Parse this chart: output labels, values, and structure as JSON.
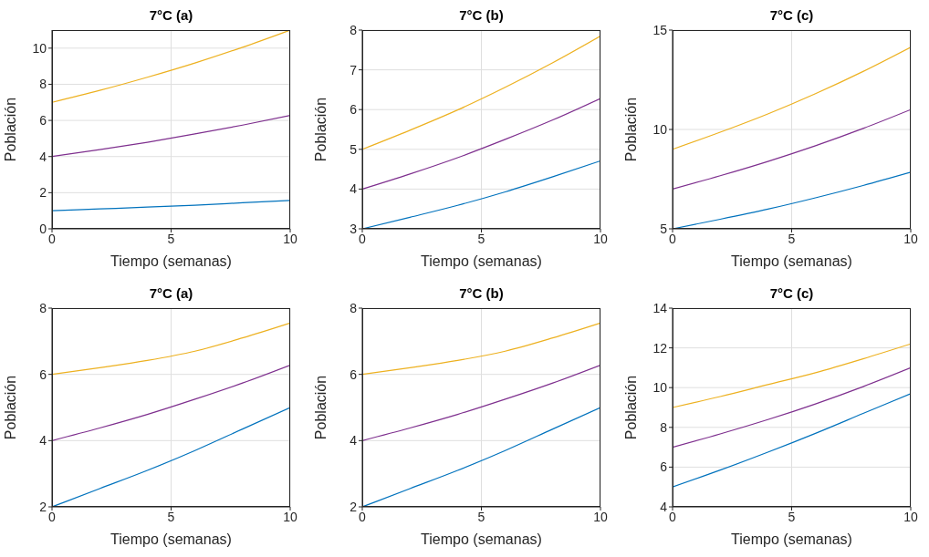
{
  "chart_data": [
    {
      "type": "line",
      "title": "7°C (a)",
      "xlabel": "Tiempo (semanas)",
      "ylabel": "Población",
      "x": [
        0,
        2,
        4,
        6,
        8,
        10
      ],
      "xlim": [
        0,
        10
      ],
      "xticks": [
        0,
        5,
        10
      ],
      "ylim": [
        0,
        11
      ],
      "yticks": [
        0,
        2,
        4,
        6,
        8,
        10
      ],
      "grid": true,
      "series": [
        {
          "color": "#0072bd",
          "values": [
            1,
            1.1,
            1.2,
            1.31,
            1.44,
            1.57
          ]
        },
        {
          "color": "#7e2f8e",
          "values": [
            4,
            4.38,
            4.79,
            5.25,
            5.74,
            6.28
          ]
        },
        {
          "color": "#edb120",
          "values": [
            7,
            7.66,
            8.39,
            9.18,
            10.05,
            11
          ]
        }
      ]
    },
    {
      "type": "line",
      "title": "7°C (b)",
      "xlabel": "Tiempo (semanas)",
      "ylabel": "Población",
      "x": [
        0,
        2,
        4,
        6,
        8,
        10
      ],
      "xlim": [
        0,
        10
      ],
      "xticks": [
        0,
        5,
        10
      ],
      "ylim": [
        3,
        8
      ],
      "yticks": [
        3,
        4,
        5,
        6,
        7,
        8
      ],
      "grid": true,
      "series": [
        {
          "color": "#0072bd",
          "values": [
            3,
            3.29,
            3.59,
            3.93,
            4.31,
            4.71
          ]
        },
        {
          "color": "#7e2f8e",
          "values": [
            4,
            4.38,
            4.79,
            5.25,
            5.74,
            6.28
          ]
        },
        {
          "color": "#edb120",
          "values": [
            5,
            5.48,
            5.99,
            6.56,
            7.18,
            7.85
          ]
        }
      ]
    },
    {
      "type": "line",
      "title": "7°C (c)",
      "xlabel": "Tiempo (semanas)",
      "ylabel": "Población",
      "x": [
        0,
        2,
        4,
        6,
        8,
        10
      ],
      "xlim": [
        0,
        10
      ],
      "xticks": [
        0,
        5,
        10
      ],
      "ylim": [
        5,
        15
      ],
      "yticks": [
        5,
        10,
        15
      ],
      "grid": true,
      "series": [
        {
          "color": "#0072bd",
          "values": [
            5,
            5.48,
            5.99,
            6.56,
            7.18,
            7.85
          ]
        },
        {
          "color": "#7e2f8e",
          "values": [
            7,
            7.67,
            8.39,
            9.18,
            10.05,
            11
          ]
        },
        {
          "color": "#edb120",
          "values": [
            9,
            9.86,
            10.78,
            11.8,
            12.92,
            14.14
          ]
        }
      ]
    },
    {
      "type": "line",
      "title": "7°C (a)",
      "xlabel": "Tiempo (semanas)",
      "ylabel": "Población",
      "x": [
        0,
        2,
        4,
        6,
        8,
        10
      ],
      "xlim": [
        0,
        10
      ],
      "xticks": [
        0,
        5,
        10
      ],
      "ylim": [
        2,
        8
      ],
      "yticks": [
        2,
        4,
        6,
        8
      ],
      "grid": true,
      "series": [
        {
          "color": "#0072bd",
          "values": [
            2,
            2.55,
            3.1,
            3.7,
            4.35,
            5
          ]
        },
        {
          "color": "#7e2f8e",
          "values": [
            4,
            4.38,
            4.79,
            5.25,
            5.74,
            6.28
          ]
        },
        {
          "color": "#edb120",
          "values": [
            6,
            6.2,
            6.42,
            6.7,
            7.1,
            7.55
          ]
        }
      ]
    },
    {
      "type": "line",
      "title": "7°C (b)",
      "xlabel": "Tiempo (semanas)",
      "ylabel": "Población",
      "x": [
        0,
        2,
        4,
        6,
        8,
        10
      ],
      "xlim": [
        0,
        10
      ],
      "xticks": [
        0,
        5,
        10
      ],
      "ylim": [
        2,
        8
      ],
      "yticks": [
        2,
        4,
        6,
        8
      ],
      "grid": true,
      "series": [
        {
          "color": "#0072bd",
          "values": [
            2,
            2.55,
            3.1,
            3.7,
            4.35,
            5
          ]
        },
        {
          "color": "#7e2f8e",
          "values": [
            4,
            4.38,
            4.79,
            5.25,
            5.74,
            6.28
          ]
        },
        {
          "color": "#edb120",
          "values": [
            6,
            6.2,
            6.42,
            6.7,
            7.1,
            7.55
          ]
        }
      ]
    },
    {
      "type": "line",
      "title": "7°C (c)",
      "xlabel": "Tiempo (semanas)",
      "ylabel": "Población",
      "x": [
        0,
        2,
        4,
        6,
        8,
        10
      ],
      "xlim": [
        0,
        10
      ],
      "xticks": [
        0,
        5,
        10
      ],
      "ylim": [
        4,
        14
      ],
      "yticks": [
        4,
        6,
        8,
        10,
        12,
        14
      ],
      "grid": true,
      "series": [
        {
          "color": "#0072bd",
          "values": [
            5,
            5.85,
            6.75,
            7.7,
            8.7,
            9.7
          ]
        },
        {
          "color": "#7e2f8e",
          "values": [
            7,
            7.67,
            8.39,
            9.18,
            10.05,
            11
          ]
        },
        {
          "color": "#edb120",
          "values": [
            9,
            9.55,
            10.15,
            10.75,
            11.45,
            12.2
          ]
        }
      ]
    }
  ]
}
